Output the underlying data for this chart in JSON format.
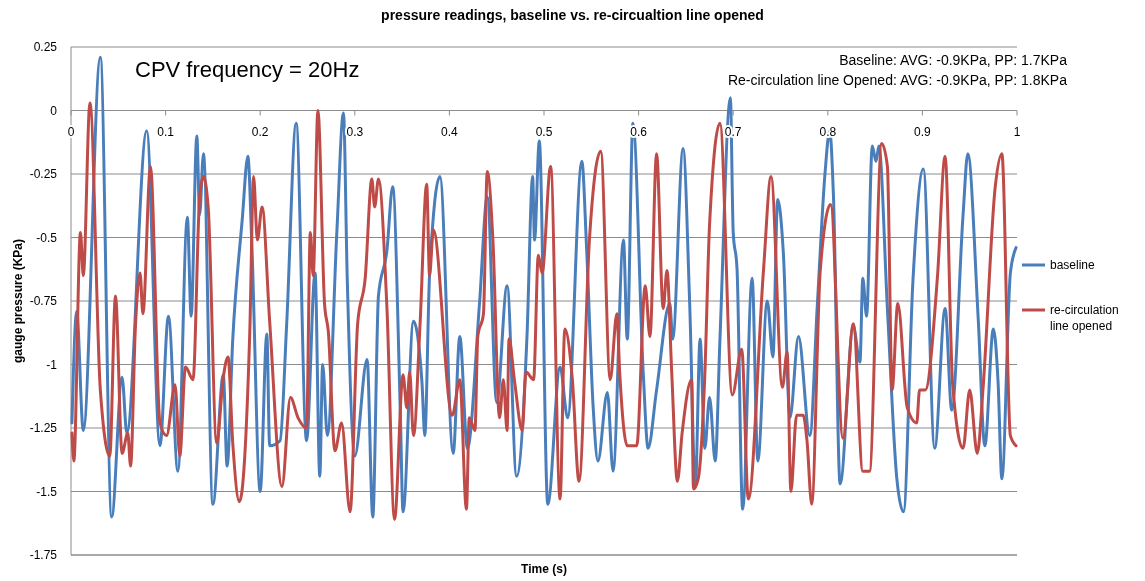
{
  "chart_data": {
    "type": "line",
    "title": "pressure readings, baseline vs. re-circualtion line opened",
    "xlabel": "Time (s)",
    "ylabel": "gauge pressure (KPa)",
    "annotations": [
      "CPV frequency = 20Hz",
      "Baseline: AVG: -0.9KPa, PP: 1.7KPa",
      "Re-circulation line Opened: AVG: -0.9KPa, PP: 1.8KPa"
    ],
    "xlim": [
      0,
      1
    ],
    "xticks": [
      0,
      0.1,
      0.2,
      0.3,
      0.4,
      0.5,
      0.6,
      0.7,
      0.8,
      0.9,
      1
    ],
    "ylim": [
      -1.75,
      0.25
    ],
    "yticks": [
      -1.75,
      -1.5,
      -1.25,
      -1,
      -0.75,
      -0.5,
      -0.25,
      0,
      0.25
    ],
    "grid": "y",
    "legend": "right",
    "marker": "none",
    "line_style": "solid",
    "series": [
      {
        "name": "baseline",
        "color": "#4a7ebb",
        "x": [
          0.001,
          0.006,
          0.013,
          0.031,
          0.043,
          0.054,
          0.059,
          0.08,
          0.094,
          0.103,
          0.113,
          0.123,
          0.127,
          0.133,
          0.136,
          0.14,
          0.15,
          0.161,
          0.165,
          0.171,
          0.181,
          0.187,
          0.191,
          0.2,
          0.207,
          0.21,
          0.221,
          0.228,
          0.238,
          0.249,
          0.258,
          0.263,
          0.266,
          0.271,
          0.281,
          0.288,
          0.292,
          0.3,
          0.313,
          0.319,
          0.325,
          0.334,
          0.34,
          0.348,
          0.351,
          0.362,
          0.371,
          0.374,
          0.379,
          0.39,
          0.404,
          0.411,
          0.419,
          0.432,
          0.44,
          0.45,
          0.461,
          0.471,
          0.482,
          0.488,
          0.49,
          0.495,
          0.504,
          0.517,
          0.525,
          0.54,
          0.545,
          0.552,
          0.557,
          0.567,
          0.573,
          0.584,
          0.588,
          0.594,
          0.605,
          0.61,
          0.619,
          0.633,
          0.636,
          0.647,
          0.654,
          0.66,
          0.665,
          0.67,
          0.675,
          0.681,
          0.686,
          0.697,
          0.7,
          0.704,
          0.71,
          0.72,
          0.726,
          0.736,
          0.742,
          0.747,
          0.753,
          0.76,
          0.769,
          0.781,
          0.789,
          0.797,
          0.802,
          0.806,
          0.813,
          0.827,
          0.834,
          0.837,
          0.841,
          0.847,
          0.851,
          0.854,
          0.863,
          0.873,
          0.88,
          0.89,
          0.901,
          0.913,
          0.924,
          0.931,
          0.943,
          0.948,
          0.959,
          0.966,
          0.975,
          0.98,
          0.984,
          0.993,
          0.999
        ],
        "values": [
          -1.23,
          -0.79,
          -1.26,
          0.21,
          -1.6,
          -1.05,
          -1.27,
          -0.08,
          -1.32,
          -0.81,
          -1.42,
          -0.42,
          -0.81,
          -0.1,
          -0.41,
          -0.17,
          -1.55,
          -1.04,
          -1.4,
          -0.9,
          -0.43,
          -0.18,
          -0.51,
          -1.5,
          -0.88,
          -1.32,
          -1.3,
          -0.84,
          -0.05,
          -1.3,
          -0.64,
          -1.44,
          -1.0,
          -1.28,
          -0.48,
          -0.01,
          -0.66,
          -1.36,
          -0.98,
          -1.6,
          -0.73,
          -0.55,
          -0.3,
          -1.17,
          -1.58,
          -0.83,
          -1.07,
          -1.28,
          -0.65,
          -0.26,
          -1.35,
          -0.89,
          -1.33,
          -0.75,
          -0.34,
          -1.15,
          -0.69,
          -1.44,
          -0.89,
          -0.26,
          -0.51,
          -0.12,
          -1.55,
          -1.01,
          -1.21,
          -0.2,
          -0.54,
          -1.17,
          -1.38,
          -1.11,
          -1.42,
          -0.51,
          -0.9,
          -0.05,
          -1.04,
          -1.33,
          -1.1,
          -0.76,
          -0.9,
          -0.15,
          -0.76,
          -1.48,
          -0.9,
          -1.33,
          -1.13,
          -1.38,
          -0.9,
          0.05,
          -0.48,
          -0.62,
          -1.57,
          -0.66,
          -1.38,
          -0.75,
          -0.97,
          -0.35,
          -0.56,
          -1.21,
          -0.89,
          -1.28,
          -0.76,
          -0.25,
          -0.08,
          -0.34,
          -1.47,
          -0.85,
          -0.99,
          -0.66,
          -0.81,
          -0.14,
          -0.2,
          -0.14,
          -0.78,
          -1.45,
          -1.58,
          -0.67,
          -0.23,
          -1.33,
          -0.78,
          -1.18,
          -0.41,
          -0.17,
          -0.82,
          -1.32,
          -0.86,
          -1.07,
          -1.45,
          -0.64,
          -0.54
        ]
      },
      {
        "name": "re-circulation line opened",
        "color": "#be4b48",
        "x": [
          0.001,
          0.003,
          0.01,
          0.013,
          0.02,
          0.031,
          0.041,
          0.047,
          0.054,
          0.06,
          0.063,
          0.068,
          0.073,
          0.076,
          0.084,
          0.094,
          0.101,
          0.11,
          0.115,
          0.121,
          0.129,
          0.136,
          0.14,
          0.145,
          0.154,
          0.161,
          0.166,
          0.171,
          0.178,
          0.189,
          0.193,
          0.197,
          0.202,
          0.21,
          0.223,
          0.232,
          0.24,
          0.249,
          0.253,
          0.256,
          0.261,
          0.268,
          0.272,
          0.279,
          0.286,
          0.295,
          0.303,
          0.311,
          0.318,
          0.321,
          0.325,
          0.334,
          0.342,
          0.351,
          0.355,
          0.358,
          0.362,
          0.369,
          0.376,
          0.379,
          0.383,
          0.403,
          0.411,
          0.418,
          0.421,
          0.427,
          0.43,
          0.436,
          0.44,
          0.446,
          0.453,
          0.457,
          0.461,
          0.463,
          0.469,
          0.477,
          0.481,
          0.489,
          0.494,
          0.498,
          0.507,
          0.517,
          0.522,
          0.53,
          0.537,
          0.548,
          0.56,
          0.57,
          0.577,
          0.58,
          0.588,
          0.598,
          0.607,
          0.612,
          0.619,
          0.626,
          0.63,
          0.635,
          0.641,
          0.646,
          0.656,
          0.658,
          0.663,
          0.67,
          0.675,
          0.686,
          0.699,
          0.709,
          0.716,
          0.732,
          0.74,
          0.752,
          0.757,
          0.761,
          0.767,
          0.774,
          0.778,
          0.783,
          0.792,
          0.803,
          0.816,
          0.827,
          0.837,
          0.844,
          0.857,
          0.863,
          0.868,
          0.874,
          0.884,
          0.894,
          0.897,
          0.903,
          0.916,
          0.924,
          0.932,
          0.943,
          0.95,
          0.958,
          0.964,
          0.977,
          0.984,
          0.993,
          0.999
        ],
        "values": [
          -1.27,
          -1.38,
          -0.48,
          -0.65,
          0.03,
          -1.1,
          -1.36,
          -0.73,
          -1.35,
          -1.27,
          -1.4,
          -0.86,
          -0.64,
          -0.8,
          -0.22,
          -1.23,
          -1.28,
          -1.08,
          -1.36,
          -1.01,
          -1.06,
          -0.34,
          -0.26,
          -0.38,
          -1.31,
          -1.05,
          -0.97,
          -1.31,
          -1.54,
          -0.87,
          -0.26,
          -0.51,
          -0.38,
          -0.83,
          -1.48,
          -1.13,
          -1.21,
          -1.25,
          -0.48,
          -0.65,
          0.0,
          -0.76,
          -0.87,
          -1.34,
          -1.23,
          -1.58,
          -0.84,
          -0.66,
          -0.27,
          -0.38,
          -0.27,
          -0.78,
          -1.61,
          -1.04,
          -1.17,
          -1.03,
          -1.28,
          -0.84,
          -0.29,
          -0.65,
          -0.47,
          -1.2,
          -1.06,
          -1.57,
          -1.21,
          -1.26,
          -0.89,
          -0.8,
          -0.24,
          -0.51,
          -1.21,
          -1.06,
          -1.26,
          -0.9,
          -1.07,
          -1.26,
          -1.03,
          -1.06,
          -0.57,
          -0.64,
          -0.22,
          -1.53,
          -0.86,
          -1.06,
          -1.46,
          -0.51,
          -0.16,
          -1.06,
          -0.8,
          -1.03,
          -1.32,
          -1.32,
          -0.69,
          -0.89,
          -0.17,
          -0.78,
          -0.63,
          -1.03,
          -1.46,
          -1.27,
          -1.06,
          -1.49,
          -1.45,
          -1.04,
          -0.45,
          -0.05,
          -1.12,
          -0.94,
          -1.53,
          -0.63,
          -0.26,
          -1.09,
          -0.95,
          -1.5,
          -1.2,
          -1.2,
          -1.3,
          -1.55,
          -0.63,
          -0.37,
          -1.29,
          -0.84,
          -1.42,
          -1.42,
          -0.13,
          -0.22,
          -1.1,
          -0.76,
          -1.17,
          -1.23,
          -1.1,
          -1.1,
          -0.65,
          -0.18,
          -1.08,
          -1.33,
          -1.1,
          -1.35,
          -1.1,
          -0.3,
          -0.17,
          -1.28,
          -1.32
        ]
      }
    ]
  }
}
